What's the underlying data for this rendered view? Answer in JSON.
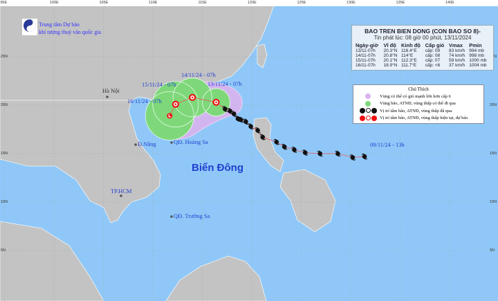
{
  "header": {
    "org_line1": "Trung tâm Dự báo",
    "org_line2": "khí tượng thuỷ văn quốc gia",
    "logo_text": "NCHMF"
  },
  "axes": {
    "lon_labels": [
      "95E",
      "100E",
      "105E",
      "110E",
      "115E",
      "120E",
      "125E",
      "130E",
      "135E",
      "140E"
    ],
    "lat_labels": [
      "25N",
      "20N",
      "15N",
      "10N",
      "5N"
    ]
  },
  "info": {
    "title": "BAO TREN BIEN DONG (CON BAO SO 8)-",
    "issued": "Tin phát lúc: 08 giờ 00 phút, 13/11/2024",
    "columns": [
      "Ngày-giờ",
      "Vĩ độ",
      "Kinh độ",
      "Cấp gió",
      "Vmax",
      "Pmin"
    ],
    "rows": [
      [
        "13/11-07h",
        "20.3°N",
        "116.4°E",
        "cấp: 09",
        "83 km/h",
        "994 mb"
      ],
      [
        "14/11-07h",
        "20.8°N",
        "114°E",
        "cấp: 08",
        "74 km/h",
        "998 mb"
      ],
      [
        "15/11-07h",
        "20.1°N",
        "112.3°E",
        "cấp: 07",
        "59 km/h",
        "1000 mb"
      ],
      [
        "16/11-07h",
        "18.9°N",
        "111.7°E",
        "cấp: <6",
        "37 km/h",
        "1004 mb"
      ]
    ]
  },
  "legend": {
    "title": "Chú Thích",
    "items": [
      "Vùng có thể có gió mạnh lớn hơn cấp 6",
      "Vùng bão, ATNĐ, vùng thấp có thể đi qua",
      "Vị trí tâm bão, ATNĐ, vùng thấp đã qua",
      "Vị trí tâm bão, ATNĐ, vùng thấp hiện tại, dự báo"
    ]
  },
  "places": {
    "hanoi": "Hà Nội",
    "danang": "Đ.Nẵng",
    "hoangsa": "QĐ. Hoàng Sa",
    "hcm": "TP.HCM",
    "truongsa": "QĐ. Trường Sa",
    "sea": "Biển Đông"
  },
  "track_labels": {
    "start": "09/11/24 - 13h",
    "d13": "13/11/24 - 07h",
    "d14": "14/11/24 - 07h",
    "d15": "15/11/24 - 07h",
    "d16": "16/11/24 - 07h"
  },
  "forecast_track": [
    {
      "lat": 20.3,
      "lon": 116.4
    },
    {
      "lat": 20.8,
      "lon": 114.0
    },
    {
      "lat": 20.1,
      "lon": 112.3
    },
    {
      "lat": 18.9,
      "lon": 111.7
    }
  ],
  "past_track": [
    {
      "lat": 14.7,
      "lon": 131.4
    },
    {
      "lat": 14.6,
      "lon": 130.2
    },
    {
      "lat": 15.0,
      "lon": 128.7
    },
    {
      "lat": 15.0,
      "lon": 126.9
    },
    {
      "lat": 15.1,
      "lon": 125.4
    },
    {
      "lat": 15.4,
      "lon": 124.3
    },
    {
      "lat": 15.7,
      "lon": 123.3
    },
    {
      "lat": 16.2,
      "lon": 122.5
    },
    {
      "lat": 16.7,
      "lon": 121.1
    },
    {
      "lat": 17.4,
      "lon": 120.6
    },
    {
      "lat": 17.8,
      "lon": 119.9
    },
    {
      "lat": 18.3,
      "lon": 119.4
    },
    {
      "lat": 18.5,
      "lon": 118.9
    },
    {
      "lat": 18.6,
      "lon": 118.6
    },
    {
      "lat": 19.1,
      "lon": 118.2
    },
    {
      "lat": 19.4,
      "lon": 117.8
    },
    {
      "lat": 19.6,
      "lon": 117.3
    }
  ],
  "colors": {
    "sea": "#8fc8f8",
    "land": "#c3c3c3",
    "green_zone": "#7ed87a",
    "purple_zone": "#d9b3ec",
    "storm_red": "#ee1111",
    "label_blue": "#1f3fd0"
  }
}
